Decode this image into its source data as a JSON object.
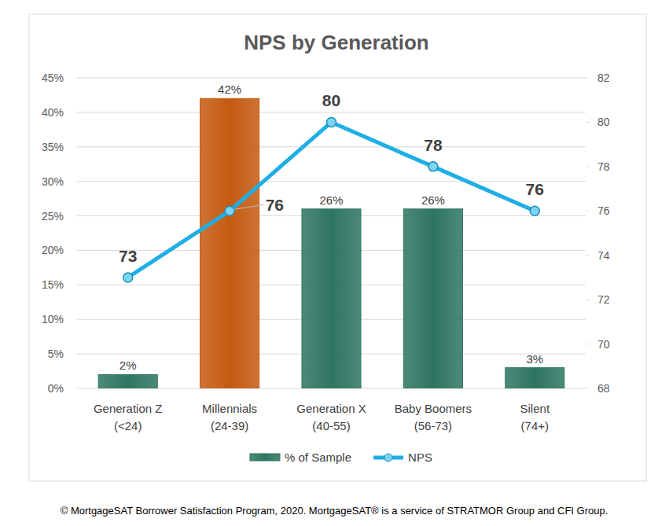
{
  "chart_data": {
    "type": "bar",
    "title": "NPS by Generation",
    "categories": [
      "Generation Z\n(<24)",
      "Millennials\n(24-39)",
      "Generation X\n(40-55)",
      "Baby Boomers\n(56-73)",
      "Silent\n(74+)"
    ],
    "series": [
      {
        "name": "% of Sample",
        "type": "bar",
        "color": "#2E7561",
        "colors": [
          "#2E7561",
          "#C55A11",
          "#2E7561",
          "#2E7561",
          "#2E7561"
        ],
        "values": [
          2,
          42,
          26,
          26,
          3
        ],
        "value_labels": [
          "2%",
          "42%",
          "26%",
          "26%",
          "3%"
        ]
      },
      {
        "name": "NPS",
        "type": "line",
        "axis": "y2",
        "color": "#1FAEE5",
        "marker": "circle",
        "values": [
          73,
          76,
          80,
          78,
          76
        ]
      }
    ],
    "ylim": [
      0,
      45
    ],
    "yticks": [
      {
        "value": 0,
        "label": "0%"
      },
      {
        "value": 5,
        "label": "5%"
      },
      {
        "value": 10,
        "label": "10%"
      },
      {
        "value": 15,
        "label": "15%"
      },
      {
        "value": 20,
        "label": "20%"
      },
      {
        "value": 25,
        "label": "25%"
      },
      {
        "value": 30,
        "label": "30%"
      },
      {
        "value": 35,
        "label": "35%"
      },
      {
        "value": 40,
        "label": "40%"
      },
      {
        "value": 45,
        "label": "45%"
      }
    ],
    "y2lim": [
      68,
      82
    ],
    "y2ticks": [
      68,
      70,
      72,
      74,
      76,
      78,
      80,
      82
    ],
    "grid": true,
    "legend": "bottom",
    "data_labels": true
  },
  "footer": "© MortgageSAT Borrower Satisfaction Program, 2020. MortgageSAT® is a service of STRATMOR Group and CFI Group."
}
